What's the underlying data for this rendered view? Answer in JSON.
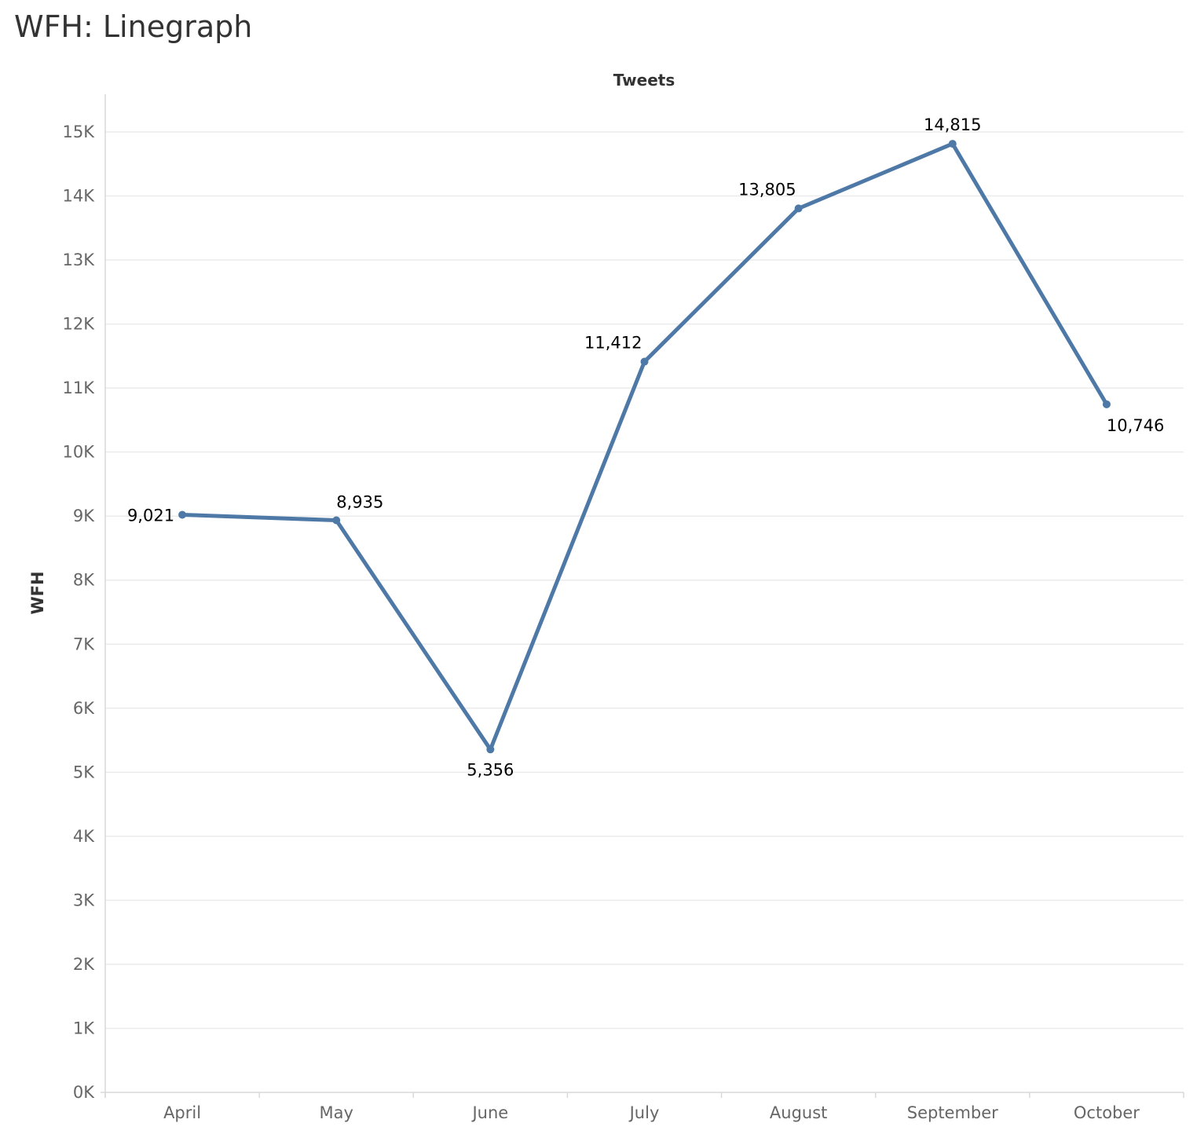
{
  "page": {
    "title": "WFH: Linegraph"
  },
  "chart_data": {
    "type": "line",
    "subtitle": "Tweets",
    "xlabel": "",
    "ylabel": "WFH",
    "categories": [
      "April",
      "May",
      "June",
      "July",
      "August",
      "September",
      "October"
    ],
    "series": [
      {
        "values": [
          9021,
          8935,
          5356,
          11412,
          13805,
          14815,
          10746
        ],
        "data_labels": [
          "9,021",
          "8,935",
          "5,356",
          "11,412",
          "13,805",
          "14,815",
          "10,746"
        ],
        "color": "#4e79a7"
      }
    ],
    "yticks": [
      0,
      1000,
      2000,
      3000,
      4000,
      5000,
      6000,
      7000,
      8000,
      9000,
      10000,
      11000,
      12000,
      13000,
      14000,
      15000
    ],
    "ytick_labels": [
      "0K",
      "1K",
      "2K",
      "3K",
      "4K",
      "5K",
      "6K",
      "7K",
      "8K",
      "9K",
      "10K",
      "11K",
      "12K",
      "13K",
      "14K",
      "15K"
    ],
    "ylim": [
      0,
      15000
    ],
    "grid": true,
    "legend": "none",
    "colors": {
      "line": "#4e79a7",
      "grid": "#ebebeb",
      "axis": "#d9d9d9"
    }
  }
}
